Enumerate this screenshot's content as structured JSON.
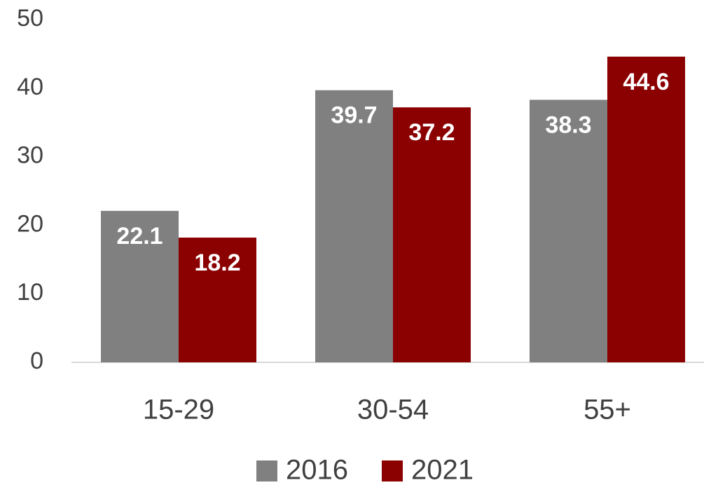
{
  "chart_data": {
    "type": "bar",
    "categories": [
      "15-29",
      "30-54",
      "55+"
    ],
    "series": [
      {
        "name": "2016",
        "color": "#808080",
        "values": [
          22.1,
          39.7,
          38.3
        ]
      },
      {
        "name": "2021",
        "color": "#8b0000",
        "values": [
          18.2,
          37.2,
          44.6
        ]
      }
    ],
    "ylim": [
      0,
      50
    ],
    "yticks": [
      0,
      10,
      20,
      30,
      40,
      50
    ],
    "grid": false,
    "legend": "bottom"
  }
}
